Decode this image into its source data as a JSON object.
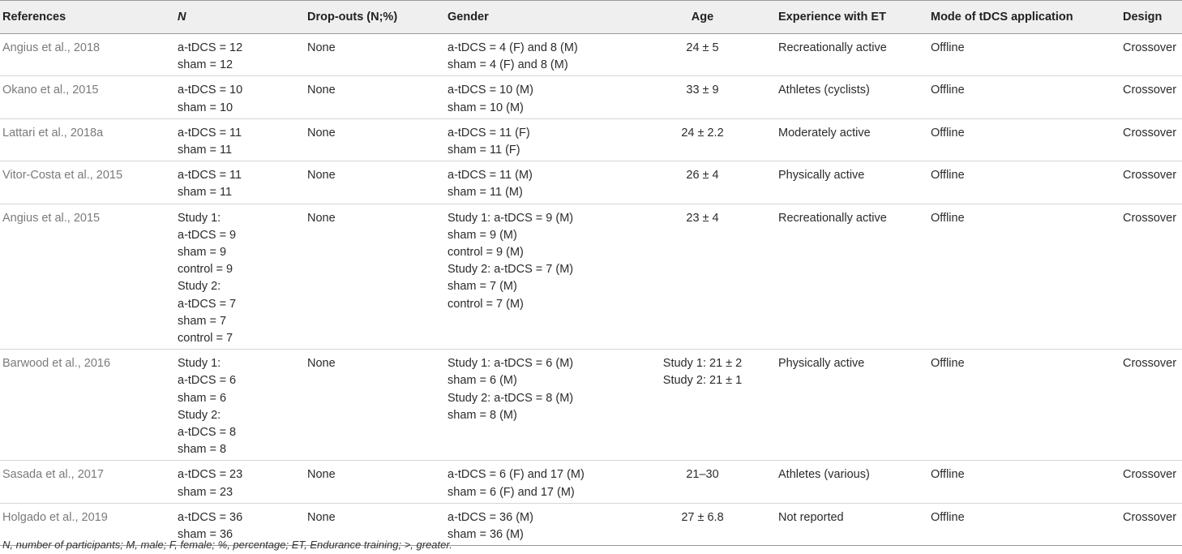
{
  "headers": [
    "References",
    "N",
    "Drop-outs (N;%)",
    "Gender",
    "Age",
    "Experience with ET",
    "Mode of tDCS application",
    "Design"
  ],
  "rows": [
    {
      "ref": "Angius et al., 2018",
      "n": [
        "a-tDCS = 12",
        "sham = 12"
      ],
      "dropouts": "None",
      "gender": [
        "a-tDCS = 4 (F) and 8 (M)",
        "sham = 4 (F) and 8 (M)"
      ],
      "age": [
        "24 ± 5"
      ],
      "experience": "Recreationally active",
      "mode": "Offline",
      "design": "Crossover"
    },
    {
      "ref": "Okano et al., 2015",
      "n": [
        "a-tDCS = 10",
        "sham = 10"
      ],
      "dropouts": "None",
      "gender": [
        "a-tDCS = 10 (M)",
        "sham = 10 (M)"
      ],
      "age": [
        "33 ± 9"
      ],
      "experience": "Athletes (cyclists)",
      "mode": "Offline",
      "design": "Crossover"
    },
    {
      "ref": "Lattari et al., 2018a",
      "n": [
        "a-tDCS = 11",
        "sham = 11"
      ],
      "dropouts": "None",
      "gender": [
        "a-tDCS = 11 (F)",
        "sham = 11 (F)"
      ],
      "age": [
        "24 ± 2.2"
      ],
      "experience": "Moderately active",
      "mode": "Offline",
      "design": "Crossover"
    },
    {
      "ref": "Vitor-Costa et al., 2015",
      "n": [
        "a-tDCS = 11",
        "sham = 11"
      ],
      "dropouts": "None",
      "gender": [
        "a-tDCS = 11 (M)",
        "sham = 11 (M)"
      ],
      "age": [
        "26 ± 4"
      ],
      "experience": "Physically active",
      "mode": "Offline",
      "design": "Crossover"
    },
    {
      "ref": "Angius et al., 2015",
      "n": [
        "Study 1:",
        "a-tDCS = 9",
        "sham = 9",
        "control = 9",
        "Study 2:",
        "a-tDCS = 7",
        "sham = 7",
        "control = 7"
      ],
      "dropouts": "None",
      "gender": [
        "Study 1: a-tDCS = 9 (M)",
        "sham = 9 (M)",
        "control = 9 (M)",
        "Study 2: a-tDCS = 7 (M)",
        "sham = 7 (M)",
        "control = 7 (M)"
      ],
      "age": [
        "23 ± 4"
      ],
      "experience": "Recreationally active",
      "mode": "Offline",
      "design": "Crossover"
    },
    {
      "ref": "Barwood et al., 2016",
      "n": [
        "Study 1:",
        "a-tDCS = 6",
        "sham = 6",
        "Study 2:",
        "a-tDCS = 8",
        "sham = 8"
      ],
      "dropouts": "None",
      "gender": [
        "Study 1: a-tDCS = 6 (M)",
        "sham = 6 (M)",
        "Study 2: a-tDCS = 8 (M)",
        "sham = 8 (M)"
      ],
      "age": [
        "Study 1: 21 ± 2",
        "Study 2: 21 ± 1"
      ],
      "experience": "Physically active",
      "mode": "Offline",
      "design": "Crossover"
    },
    {
      "ref": "Sasada et al., 2017",
      "n": [
        "a-tDCS = 23",
        "sham = 23"
      ],
      "dropouts": "None",
      "gender": [
        "a-tDCS = 6 (F) and 17 (M)",
        "sham = 6 (F) and 17 (M)"
      ],
      "age": [
        "21–30"
      ],
      "experience": "Athletes (various)",
      "mode": "Offline",
      "design": "Crossover"
    },
    {
      "ref": "Holgado et al., 2019",
      "n": [
        "a-tDCS = 36",
        "sham = 36"
      ],
      "dropouts": "None",
      "gender": [
        "a-tDCS = 36 (M)",
        "sham = 36 (M)"
      ],
      "age": [
        "27 ± 6.8"
      ],
      "experience": "Not reported",
      "mode": "Offline",
      "design": "Crossover"
    }
  ],
  "footnote": "N, number of participants; M, male; F, female; %, percentage; ET, Endurance training; >, greater."
}
